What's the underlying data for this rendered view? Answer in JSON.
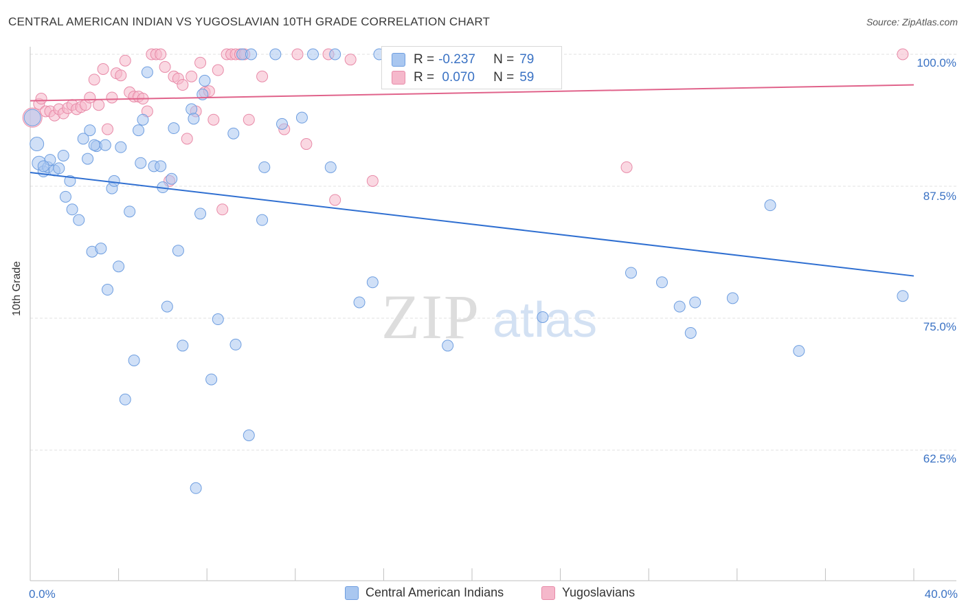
{
  "header": {
    "title": "CENTRAL AMERICAN INDIAN VS YUGOSLAVIAN 10TH GRADE CORRELATION CHART",
    "source": "Source: ZipAtlas.com"
  },
  "stats": [
    {
      "label_r": "R =",
      "r": "-0.237",
      "label_n": "N =",
      "n": "79",
      "color": "#a9c7f0",
      "border": "#6e9ee0"
    },
    {
      "label_r": "R =",
      "r": " 0.070",
      "label_n": "N =",
      "n": "59",
      "color": "#f5b8cb",
      "border": "#e88aa8"
    }
  ],
  "watermark": {
    "zip": "ZIP",
    "atlas": "atlas"
  },
  "chart_data": {
    "type": "scatter",
    "title": "CENTRAL AMERICAN INDIAN VS YUGOSLAVIAN 10TH GRADE CORRELATION CHART",
    "xlabel": "",
    "ylabel": "10th Grade",
    "xlim": [
      0,
      40
    ],
    "ylim": [
      55,
      101
    ],
    "x_tick_labels": [
      "0.0%",
      "40.0%"
    ],
    "y_ticks": [
      62.5,
      75.0,
      87.5,
      100.0
    ],
    "y_tick_labels": [
      "62.5%",
      "75.0%",
      "87.5%",
      "100.0%"
    ],
    "grid": true,
    "legend_position": "bottom-center",
    "series": [
      {
        "name": "Central American Indians",
        "color": "#a9c7f0",
        "stroke": "#6e9ee0",
        "trend_color": "#2f6fd1",
        "trend": {
          "x": [
            0,
            40
          ],
          "y": [
            88.8,
            79.0
          ]
        },
        "points": [
          [
            0.1,
            94.0
          ],
          [
            0.3,
            91.5
          ],
          [
            0.4,
            89.7
          ],
          [
            0.6,
            88.9
          ],
          [
            0.8,
            89.3
          ],
          [
            0.9,
            90.0
          ],
          [
            1.1,
            89.0
          ],
          [
            1.3,
            89.2
          ],
          [
            1.5,
            90.4
          ],
          [
            1.6,
            86.5
          ],
          [
            1.8,
            88.0
          ],
          [
            1.9,
            85.3
          ],
          [
            2.2,
            84.3
          ],
          [
            2.4,
            92.0
          ],
          [
            2.6,
            90.1
          ],
          [
            2.7,
            92.8
          ],
          [
            2.8,
            81.3
          ],
          [
            3.0,
            91.3
          ],
          [
            3.2,
            81.6
          ],
          [
            3.4,
            91.4
          ],
          [
            3.5,
            77.7
          ],
          [
            3.7,
            87.3
          ],
          [
            3.8,
            88.0
          ],
          [
            4.0,
            79.9
          ],
          [
            4.1,
            91.2
          ],
          [
            4.3,
            67.3
          ],
          [
            4.5,
            85.1
          ],
          [
            4.7,
            71.0
          ],
          [
            4.9,
            92.8
          ],
          [
            5.0,
            89.7
          ],
          [
            5.1,
            93.8
          ],
          [
            5.3,
            98.3
          ],
          [
            5.6,
            89.4
          ],
          [
            5.9,
            89.4
          ],
          [
            6.0,
            87.4
          ],
          [
            6.2,
            76.1
          ],
          [
            6.4,
            88.2
          ],
          [
            6.5,
            93.0
          ],
          [
            6.7,
            81.4
          ],
          [
            6.9,
            72.4
          ],
          [
            7.3,
            94.8
          ],
          [
            7.4,
            93.9
          ],
          [
            7.5,
            58.9
          ],
          [
            7.7,
            84.9
          ],
          [
            7.8,
            96.2
          ],
          [
            7.9,
            97.5
          ],
          [
            8.2,
            69.2
          ],
          [
            8.5,
            74.9
          ],
          [
            9.2,
            92.5
          ],
          [
            9.3,
            72.5
          ],
          [
            9.6,
            100.0
          ],
          [
            9.9,
            63.9
          ],
          [
            10.0,
            100.0
          ],
          [
            10.5,
            84.3
          ],
          [
            10.6,
            89.3
          ],
          [
            11.1,
            100.0
          ],
          [
            11.4,
            93.4
          ],
          [
            12.3,
            94.0
          ],
          [
            12.8,
            100.0
          ],
          [
            13.6,
            89.3
          ],
          [
            13.8,
            100.0
          ],
          [
            14.9,
            76.5
          ],
          [
            15.5,
            78.4
          ],
          [
            15.8,
            100.0
          ],
          [
            18.9,
            72.4
          ],
          [
            20.5,
            100.0
          ],
          [
            22.0,
            100.0
          ],
          [
            23.2,
            75.1
          ],
          [
            27.2,
            79.3
          ],
          [
            28.6,
            78.4
          ],
          [
            29.4,
            76.1
          ],
          [
            29.9,
            73.6
          ],
          [
            30.1,
            76.5
          ],
          [
            31.8,
            76.9
          ],
          [
            33.5,
            85.7
          ],
          [
            34.8,
            71.9
          ],
          [
            39.5,
            77.1
          ],
          [
            0.6,
            89.4
          ],
          [
            2.9,
            91.4
          ]
        ]
      },
      {
        "name": "Yugoslavians",
        "color": "#f5b8cb",
        "stroke": "#e88aa8",
        "trend_color": "#e0628a",
        "trend": {
          "x": [
            0,
            40
          ],
          "y": [
            95.6,
            97.1
          ]
        },
        "points": [
          [
            0.1,
            94.0
          ],
          [
            0.4,
            95.3
          ],
          [
            0.5,
            95.8
          ],
          [
            0.7,
            94.6
          ],
          [
            0.9,
            94.6
          ],
          [
            1.1,
            94.2
          ],
          [
            1.3,
            94.8
          ],
          [
            1.5,
            94.4
          ],
          [
            1.7,
            94.9
          ],
          [
            1.9,
            95.2
          ],
          [
            2.1,
            94.8
          ],
          [
            2.3,
            95.0
          ],
          [
            2.5,
            95.2
          ],
          [
            2.7,
            95.9
          ],
          [
            2.9,
            97.6
          ],
          [
            3.1,
            95.2
          ],
          [
            3.3,
            98.6
          ],
          [
            3.5,
            92.9
          ],
          [
            3.7,
            95.9
          ],
          [
            3.9,
            98.2
          ],
          [
            4.1,
            98.0
          ],
          [
            4.3,
            99.4
          ],
          [
            4.5,
            96.4
          ],
          [
            4.7,
            96.0
          ],
          [
            4.9,
            96.0
          ],
          [
            5.1,
            95.8
          ],
          [
            5.3,
            94.6
          ],
          [
            5.5,
            100.0
          ],
          [
            5.7,
            100.0
          ],
          [
            5.9,
            100.0
          ],
          [
            6.1,
            98.8
          ],
          [
            6.3,
            88.0
          ],
          [
            6.5,
            97.9
          ],
          [
            6.7,
            97.7
          ],
          [
            6.9,
            97.1
          ],
          [
            7.1,
            92.0
          ],
          [
            7.3,
            97.9
          ],
          [
            7.5,
            94.6
          ],
          [
            7.7,
            99.2
          ],
          [
            7.9,
            96.4
          ],
          [
            8.1,
            96.5
          ],
          [
            8.3,
            93.8
          ],
          [
            8.5,
            98.5
          ],
          [
            8.7,
            85.3
          ],
          [
            8.9,
            100.0
          ],
          [
            9.1,
            100.0
          ],
          [
            9.3,
            100.0
          ],
          [
            9.5,
            100.0
          ],
          [
            9.7,
            100.0
          ],
          [
            9.9,
            93.8
          ],
          [
            10.5,
            97.9
          ],
          [
            11.5,
            92.9
          ],
          [
            12.1,
            100.0
          ],
          [
            12.5,
            91.5
          ],
          [
            13.5,
            100.0
          ],
          [
            13.8,
            86.2
          ],
          [
            14.5,
            99.5
          ],
          [
            15.5,
            88.0
          ],
          [
            27.0,
            89.3
          ]
        ]
      },
      {
        "name": "",
        "extra": true,
        "points": [
          [
            39.5,
            100.0
          ],
          [
            23.5,
            98.2
          ]
        ]
      }
    ]
  },
  "legend": {
    "items": [
      {
        "label": "Central American Indians",
        "color": "#a9c7f0",
        "border": "#6e9ee0"
      },
      {
        "label": "Yugoslavians",
        "color": "#f5b8cb",
        "border": "#e88aa8"
      }
    ]
  }
}
